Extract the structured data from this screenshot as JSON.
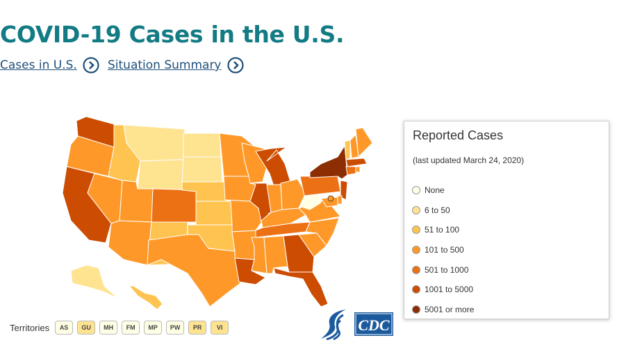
{
  "header": {
    "title": "COVID-19 Cases in the U.S.",
    "links": [
      {
        "label": "Cases in U.S."
      },
      {
        "label": "Situation Summary"
      }
    ]
  },
  "legend": {
    "title": "Reported Cases",
    "updated": "(last updated March 24, 2020)",
    "items": [
      {
        "label": "None",
        "color": "#ffffe5"
      },
      {
        "label": "6 to 50",
        "color": "#fee391"
      },
      {
        "label": "51 to 100",
        "color": "#fec44f"
      },
      {
        "label": "101 to 500",
        "color": "#fe9929"
      },
      {
        "label": "501 to 1000",
        "color": "#ec7014"
      },
      {
        "label": "1001 to 5000",
        "color": "#cc4c02"
      },
      {
        "label": "5001 or more",
        "color": "#8c2d04"
      }
    ]
  },
  "map": {
    "state_categories": {
      "WA": 5,
      "OR": 3,
      "CA": 5,
      "NV": 3,
      "ID": 2,
      "MT": 1,
      "WY": 1,
      "UT": 3,
      "AZ": 3,
      "CO": 4,
      "NM": 2,
      "ND": 1,
      "SD": 1,
      "NE": 2,
      "KS": 2,
      "OK": 2,
      "TX": 3,
      "MN": 3,
      "IA": 3,
      "MO": 3,
      "AR": 3,
      "LA": 5,
      "WI": 3,
      "IL": 5,
      "MS": 3,
      "MI": 5,
      "IN": 3,
      "KY": 3,
      "TN": 4,
      "AL": 3,
      "OH": 3,
      "GA": 5,
      "FL": 5,
      "SC": 3,
      "NC": 3,
      "VA": 3,
      "WV": 0,
      "PA": 4,
      "NY": 6,
      "VT": 2,
      "NH": 3,
      "ME": 3,
      "MA": 5,
      "CT": 4,
      "RI": 3,
      "NJ": 5,
      "DE": 3,
      "MD": 3,
      "AK": 1,
      "HI": 2
    }
  },
  "territories": {
    "label": "Territories",
    "items": [
      {
        "code": "AS",
        "color": "#ffffe5"
      },
      {
        "code": "GU",
        "color": "#fee391"
      },
      {
        "code": "MH",
        "color": "#ffffe5"
      },
      {
        "code": "FM",
        "color": "#ffffe5"
      },
      {
        "code": "MP",
        "color": "#ffffe5"
      },
      {
        "code": "PW",
        "color": "#ffffe5"
      },
      {
        "code": "PR",
        "color": "#fee391"
      },
      {
        "code": "VI",
        "color": "#fee391"
      }
    ]
  },
  "branding": {
    "cdc_text": "CDC",
    "accent": "#137b84",
    "link_color": "#1f4f7a",
    "logo_blue": "#1c5a9e"
  }
}
